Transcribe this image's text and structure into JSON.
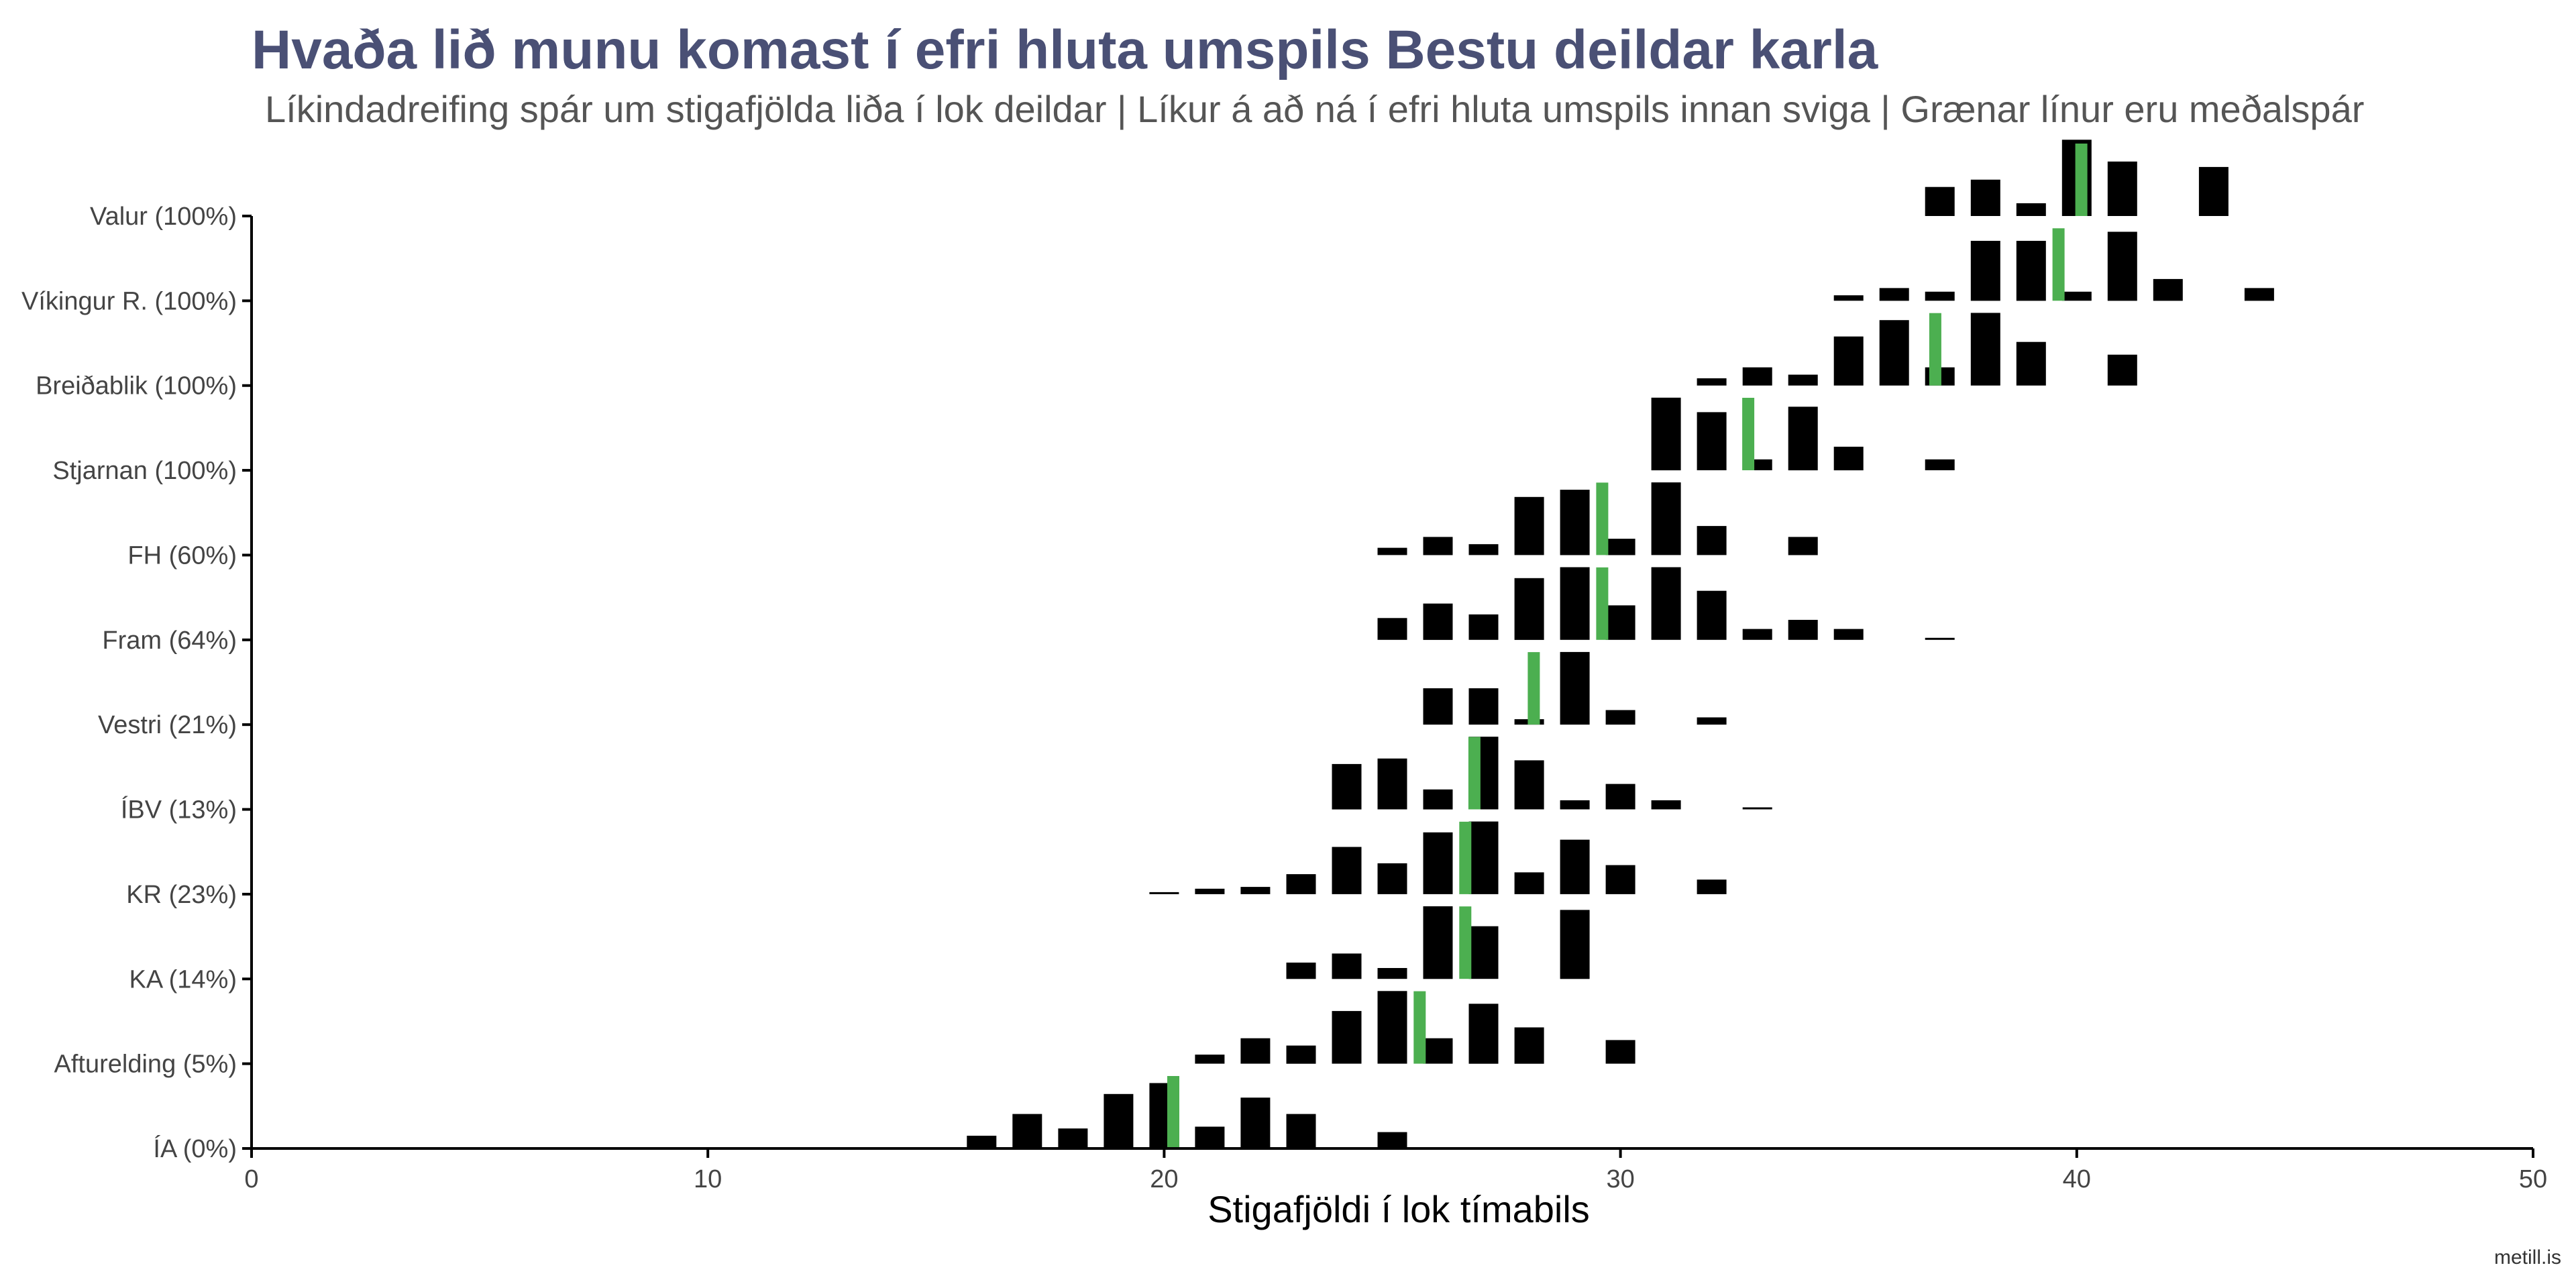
{
  "title": "Hvaða lið munu komast í efri hluta umspils Bestu deildar karla",
  "subtitle": "Líkindadreifing spár um stigafjölda liða í lok deildar | Líkur á að ná í efri hluta umspils innan sviga | Grænar línur eru meðalspár",
  "caption": "metill.is",
  "chart_data": {
    "type": "bar",
    "title": "Hvaða lið munu komast í efri hluta umspils Bestu deildar karla",
    "xlabel": "Stigafjöldi í lok tímabils",
    "ylabel": "",
    "xlim": [
      0,
      50
    ],
    "x_ticks": [
      0,
      10,
      20,
      30,
      40,
      50
    ],
    "grid": false,
    "colors": {
      "bars": "#000000",
      "mean_line": "#4caf50",
      "title": "#4a5075"
    },
    "teams": [
      {
        "label": "Valur (100%)",
        "mean": 40.1,
        "dist": [
          [
            37,
            0.16
          ],
          [
            38,
            0.2
          ],
          [
            39,
            0.07
          ],
          [
            40,
            0.42
          ],
          [
            41,
            0.3
          ],
          [
            43,
            0.27
          ]
        ]
      },
      {
        "label": "Víkingur R. (100%)",
        "mean": 39.6,
        "dist": [
          [
            35,
            0.03
          ],
          [
            36,
            0.07
          ],
          [
            37,
            0.05
          ],
          [
            38,
            0.33
          ],
          [
            39,
            0.33
          ],
          [
            40,
            0.05
          ],
          [
            41,
            0.38
          ],
          [
            42,
            0.12
          ],
          [
            44,
            0.07
          ]
        ]
      },
      {
        "label": "Breiðablik (100%)",
        "mean": 36.9,
        "dist": [
          [
            32,
            0.04
          ],
          [
            33,
            0.1
          ],
          [
            34,
            0.06
          ],
          [
            35,
            0.27
          ],
          [
            36,
            0.36
          ],
          [
            37,
            0.1
          ],
          [
            38,
            0.4
          ],
          [
            39,
            0.24
          ],
          [
            41,
            0.17
          ]
        ]
      },
      {
        "label": "Stjarnan (100%)",
        "mean": 32.8,
        "dist": [
          [
            31,
            0.4
          ],
          [
            32,
            0.32
          ],
          [
            33,
            0.06
          ],
          [
            34,
            0.35
          ],
          [
            35,
            0.13
          ],
          [
            37,
            0.06
          ]
        ]
      },
      {
        "label": "FH (60%)",
        "mean": 29.6,
        "dist": [
          [
            25,
            0.04
          ],
          [
            26,
            0.1
          ],
          [
            27,
            0.06
          ],
          [
            28,
            0.32
          ],
          [
            29,
            0.36
          ],
          [
            30,
            0.09
          ],
          [
            31,
            0.4
          ],
          [
            32,
            0.16
          ],
          [
            34,
            0.1
          ]
        ]
      },
      {
        "label": "Fram (64%)",
        "mean": 29.6,
        "dist": [
          [
            25,
            0.12
          ],
          [
            26,
            0.2
          ],
          [
            27,
            0.14
          ],
          [
            28,
            0.34
          ],
          [
            29,
            0.4
          ],
          [
            30,
            0.19
          ],
          [
            31,
            0.4
          ],
          [
            32,
            0.27
          ],
          [
            33,
            0.06
          ],
          [
            34,
            0.11
          ],
          [
            35,
            0.06
          ],
          [
            37,
            0.01
          ]
        ]
      },
      {
        "label": "Vestri (21%)",
        "mean": 28.1,
        "dist": [
          [
            26,
            0.2
          ],
          [
            27,
            0.2
          ],
          [
            28,
            0.03
          ],
          [
            29,
            0.4
          ],
          [
            30,
            0.08
          ],
          [
            32,
            0.04
          ]
        ]
      },
      {
        "label": "ÍBV (13%)",
        "mean": 26.8,
        "dist": [
          [
            24,
            0.25
          ],
          [
            25,
            0.28
          ],
          [
            26,
            0.11
          ],
          [
            27,
            0.4
          ],
          [
            28,
            0.27
          ],
          [
            29,
            0.05
          ],
          [
            30,
            0.14
          ],
          [
            31,
            0.05
          ],
          [
            33,
            0.01
          ]
        ]
      },
      {
        "label": "KR (23%)",
        "mean": 26.6,
        "dist": [
          [
            20,
            0.01
          ],
          [
            21,
            0.03
          ],
          [
            22,
            0.04
          ],
          [
            23,
            0.11
          ],
          [
            24,
            0.26
          ],
          [
            25,
            0.17
          ],
          [
            26,
            0.34
          ],
          [
            27,
            0.4
          ],
          [
            28,
            0.12
          ],
          [
            29,
            0.3
          ],
          [
            30,
            0.16
          ],
          [
            32,
            0.08
          ]
        ]
      },
      {
        "label": "KA (14%)",
        "mean": 26.6,
        "dist": [
          [
            23,
            0.09
          ],
          [
            24,
            0.14
          ],
          [
            25,
            0.06
          ],
          [
            26,
            0.4
          ],
          [
            27,
            0.29
          ],
          [
            29,
            0.38
          ]
        ]
      },
      {
        "label": "Afturelding (5%)",
        "mean": 25.6,
        "dist": [
          [
            21,
            0.05
          ],
          [
            22,
            0.14
          ],
          [
            23,
            0.1
          ],
          [
            24,
            0.29
          ],
          [
            25,
            0.4
          ],
          [
            26,
            0.14
          ],
          [
            27,
            0.33
          ],
          [
            28,
            0.2
          ],
          [
            30,
            0.13
          ]
        ]
      },
      {
        "label": "ÍA (0%)",
        "mean": 20.2,
        "dist": [
          [
            16,
            0.07
          ],
          [
            17,
            0.19
          ],
          [
            18,
            0.11
          ],
          [
            19,
            0.3
          ],
          [
            20,
            0.36
          ],
          [
            21,
            0.12
          ],
          [
            22,
            0.28
          ],
          [
            23,
            0.19
          ],
          [
            25,
            0.09
          ]
        ]
      }
    ]
  }
}
